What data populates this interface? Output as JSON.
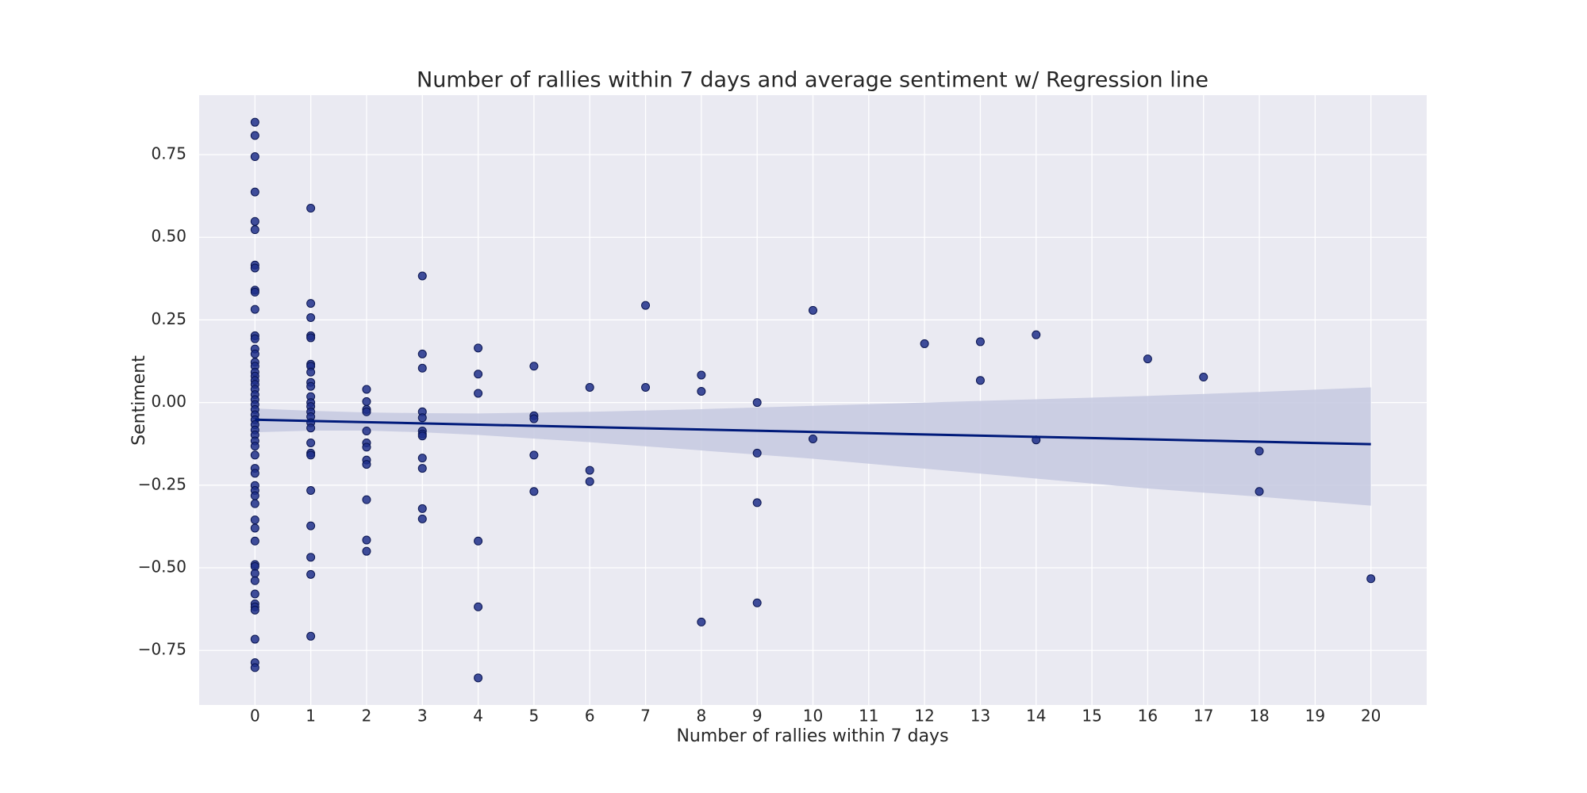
{
  "chart_data": {
    "type": "scatter",
    "title": "Number of rallies within 7 days and average sentiment w/ Regression line",
    "x_label": "Number of rallies within 7 days",
    "y_label": "Sentiment",
    "color": "#1f2f8a",
    "line_color": "#001a7a",
    "band_color": "#c5c9e0",
    "background": "#eaeaf2",
    "grid": true,
    "xlim": [
      -1,
      21
    ],
    "ylim": [
      -0.915,
      0.93
    ],
    "xticks": [
      0,
      1,
      2,
      3,
      4,
      5,
      6,
      7,
      8,
      9,
      10,
      11,
      12,
      13,
      14,
      15,
      16,
      17,
      18,
      19,
      20
    ],
    "yticks": [
      {
        "value": -0.75,
        "label": "−0.75"
      },
      {
        "value": -0.5,
        "label": "−0.50"
      },
      {
        "value": -0.25,
        "label": "−0.25"
      },
      {
        "value": 0,
        "label": "0.00"
      },
      {
        "value": 0.25,
        "label": "0.25"
      },
      {
        "value": 0.5,
        "label": "0.50"
      },
      {
        "value": 0.75,
        "label": "0.75"
      }
    ],
    "x": [
      0,
      0,
      0,
      0,
      0,
      0,
      0,
      0,
      0,
      0,
      0,
      0,
      0,
      0,
      0,
      0,
      0,
      0,
      0,
      0,
      0,
      0,
      0,
      0,
      0,
      0,
      0,
      0,
      0,
      0,
      0,
      0,
      0,
      0,
      0,
      0,
      0,
      0,
      0,
      0,
      0,
      0,
      0,
      0,
      0,
      0,
      0,
      0,
      0,
      0,
      0,
      0,
      0,
      0,
      1,
      1,
      1,
      1,
      1,
      1,
      1,
      1,
      1,
      1,
      1,
      1,
      1,
      1,
      1,
      1,
      1,
      1,
      1,
      1,
      1,
      1,
      1,
      1,
      1,
      2,
      2,
      2,
      2,
      2,
      2,
      2,
      2,
      2,
      2,
      2,
      2,
      3,
      3,
      3,
      3,
      3,
      3,
      3,
      3,
      3,
      3,
      3,
      3,
      4,
      4,
      4,
      4,
      4,
      4,
      5,
      5,
      5,
      5,
      5,
      6,
      6,
      6,
      7,
      7,
      8,
      8,
      8,
      9,
      9,
      9,
      9,
      10,
      10,
      12,
      13,
      13,
      14,
      14,
      16,
      17,
      18,
      18,
      20
    ],
    "values": [
      0.848,
      0.808,
      0.744,
      0.637,
      0.548,
      0.523,
      0.416,
      0.407,
      0.34,
      0.334,
      0.282,
      0.202,
      0.193,
      0.162,
      0.147,
      0.122,
      0.11,
      0.092,
      0.08,
      0.067,
      0.055,
      0.04,
      0.024,
      0.009,
      -0.006,
      -0.021,
      -0.037,
      -0.052,
      -0.067,
      -0.083,
      -0.098,
      -0.116,
      -0.132,
      -0.159,
      -0.199,
      -0.214,
      -0.251,
      -0.266,
      -0.282,
      -0.306,
      -0.355,
      -0.38,
      -0.419,
      -0.49,
      -0.496,
      -0.517,
      -0.539,
      -0.579,
      -0.609,
      -0.618,
      -0.628,
      -0.716,
      -0.787,
      -0.802,
      0.588,
      0.3,
      0.257,
      0.202,
      0.196,
      0.116,
      0.11,
      0.092,
      0.061,
      0.049,
      0.018,
      0,
      -0.012,
      -0.028,
      -0.043,
      -0.061,
      -0.077,
      -0.122,
      -0.153,
      -0.159,
      -0.266,
      -0.373,
      -0.468,
      -0.52,
      -0.707,
      0.04,
      0.003,
      -0.021,
      -0.028,
      -0.086,
      -0.122,
      -0.135,
      -0.174,
      -0.187,
      -0.294,
      -0.416,
      -0.45,
      0.383,
      0.147,
      0.104,
      -0.028,
      -0.046,
      -0.086,
      -0.095,
      -0.101,
      -0.168,
      -0.199,
      -0.321,
      -0.352,
      0.165,
      0.086,
      0.028,
      -0.419,
      -0.618,
      -0.833,
      0.11,
      -0.04,
      -0.049,
      -0.159,
      -0.269,
      0.046,
      -0.205,
      -0.239,
      0.294,
      0.046,
      0.083,
      0.034,
      -0.664,
      0,
      -0.153,
      -0.303,
      -0.606,
      0.279,
      -0.11,
      0.178,
      0.184,
      0.067,
      0.205,
      -0.113,
      0.132,
      0.077,
      -0.147,
      -0.269,
      -0.533
    ],
    "regression": {
      "x": [
        0,
        20
      ],
      "values": [
        -0.052,
        -0.126
      ]
    },
    "band": {
      "x": [
        0,
        1,
        2,
        3,
        4,
        6,
        8,
        10,
        12,
        14,
        16,
        18,
        20
      ],
      "upper": [
        -0.018,
        -0.025,
        -0.03,
        -0.032,
        -0.033,
        -0.028,
        -0.02,
        -0.01,
        0,
        0.01,
        0.02,
        0.032,
        0.046
      ],
      "lower": [
        -0.09,
        -0.085,
        -0.085,
        -0.09,
        -0.098,
        -0.12,
        -0.145,
        -0.17,
        -0.2,
        -0.23,
        -0.26,
        -0.285,
        -0.312
      ]
    }
  }
}
